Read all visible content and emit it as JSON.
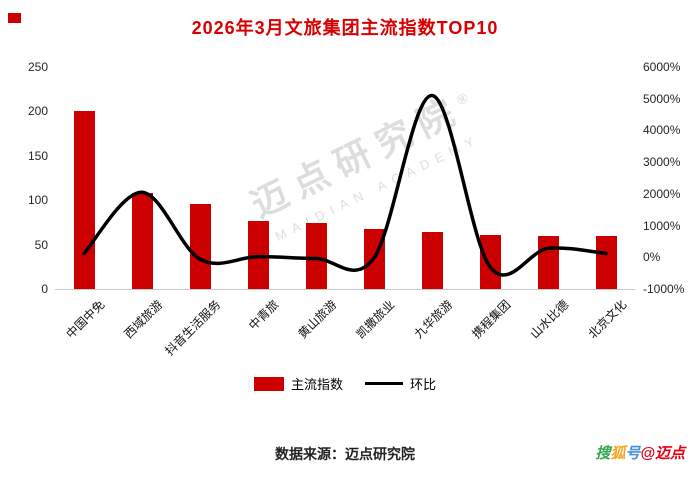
{
  "title": "2026年3月文旅集团主流指数TOP10",
  "colors": {
    "title": "#d80000",
    "bar": "#cc0000",
    "line": "#000000"
  },
  "chart_data": {
    "type": "bar",
    "combo": "bar+line dual-axis",
    "title": "2026年3月文旅集团主流指数TOP10",
    "categories": [
      "中国中免",
      "西域旅游",
      "抖音生活服务",
      "中青旅",
      "黄山旅游",
      "凯撒旅业",
      "九华旅游",
      "携程集团",
      "山水比德",
      "北京文化"
    ],
    "series": [
      {
        "name": "主流指数",
        "type": "bar",
        "axis": "left",
        "values": [
          200,
          108,
          96,
          77,
          74,
          68,
          64,
          61,
          60,
          60
        ]
      },
      {
        "name": "环比",
        "type": "line",
        "axis": "right",
        "values": [
          120,
          2050,
          -60,
          20,
          -40,
          -20,
          5100,
          -300,
          280,
          120
        ]
      }
    ],
    "left_axis": {
      "min": 0,
      "max": 250,
      "ticks": [
        0,
        50,
        100,
        150,
        200,
        250
      ]
    },
    "right_axis": {
      "min": -1000,
      "max": 6000,
      "ticks": [
        "-1000%",
        "0%",
        "1000%",
        "2000%",
        "3000%",
        "4000%",
        "5000%",
        "6000%"
      ]
    },
    "legend": {
      "position": "bottom",
      "entries": [
        "主流指数",
        "环比"
      ]
    },
    "grid": false
  },
  "watermark": {
    "line1": "迈点研究院",
    "reg": "®",
    "line2": "MAIDIAN ACADEMY"
  },
  "footer": {
    "source": "数据来源：迈点研究院"
  },
  "badge": {
    "parts": [
      {
        "text": "搜",
        "color": "#3aa657"
      },
      {
        "text": "狐",
        "color": "#f5a623"
      },
      {
        "text": "号",
        "color": "#4a90d9"
      },
      {
        "text": "@迈点",
        "color": "#e60012"
      }
    ]
  }
}
